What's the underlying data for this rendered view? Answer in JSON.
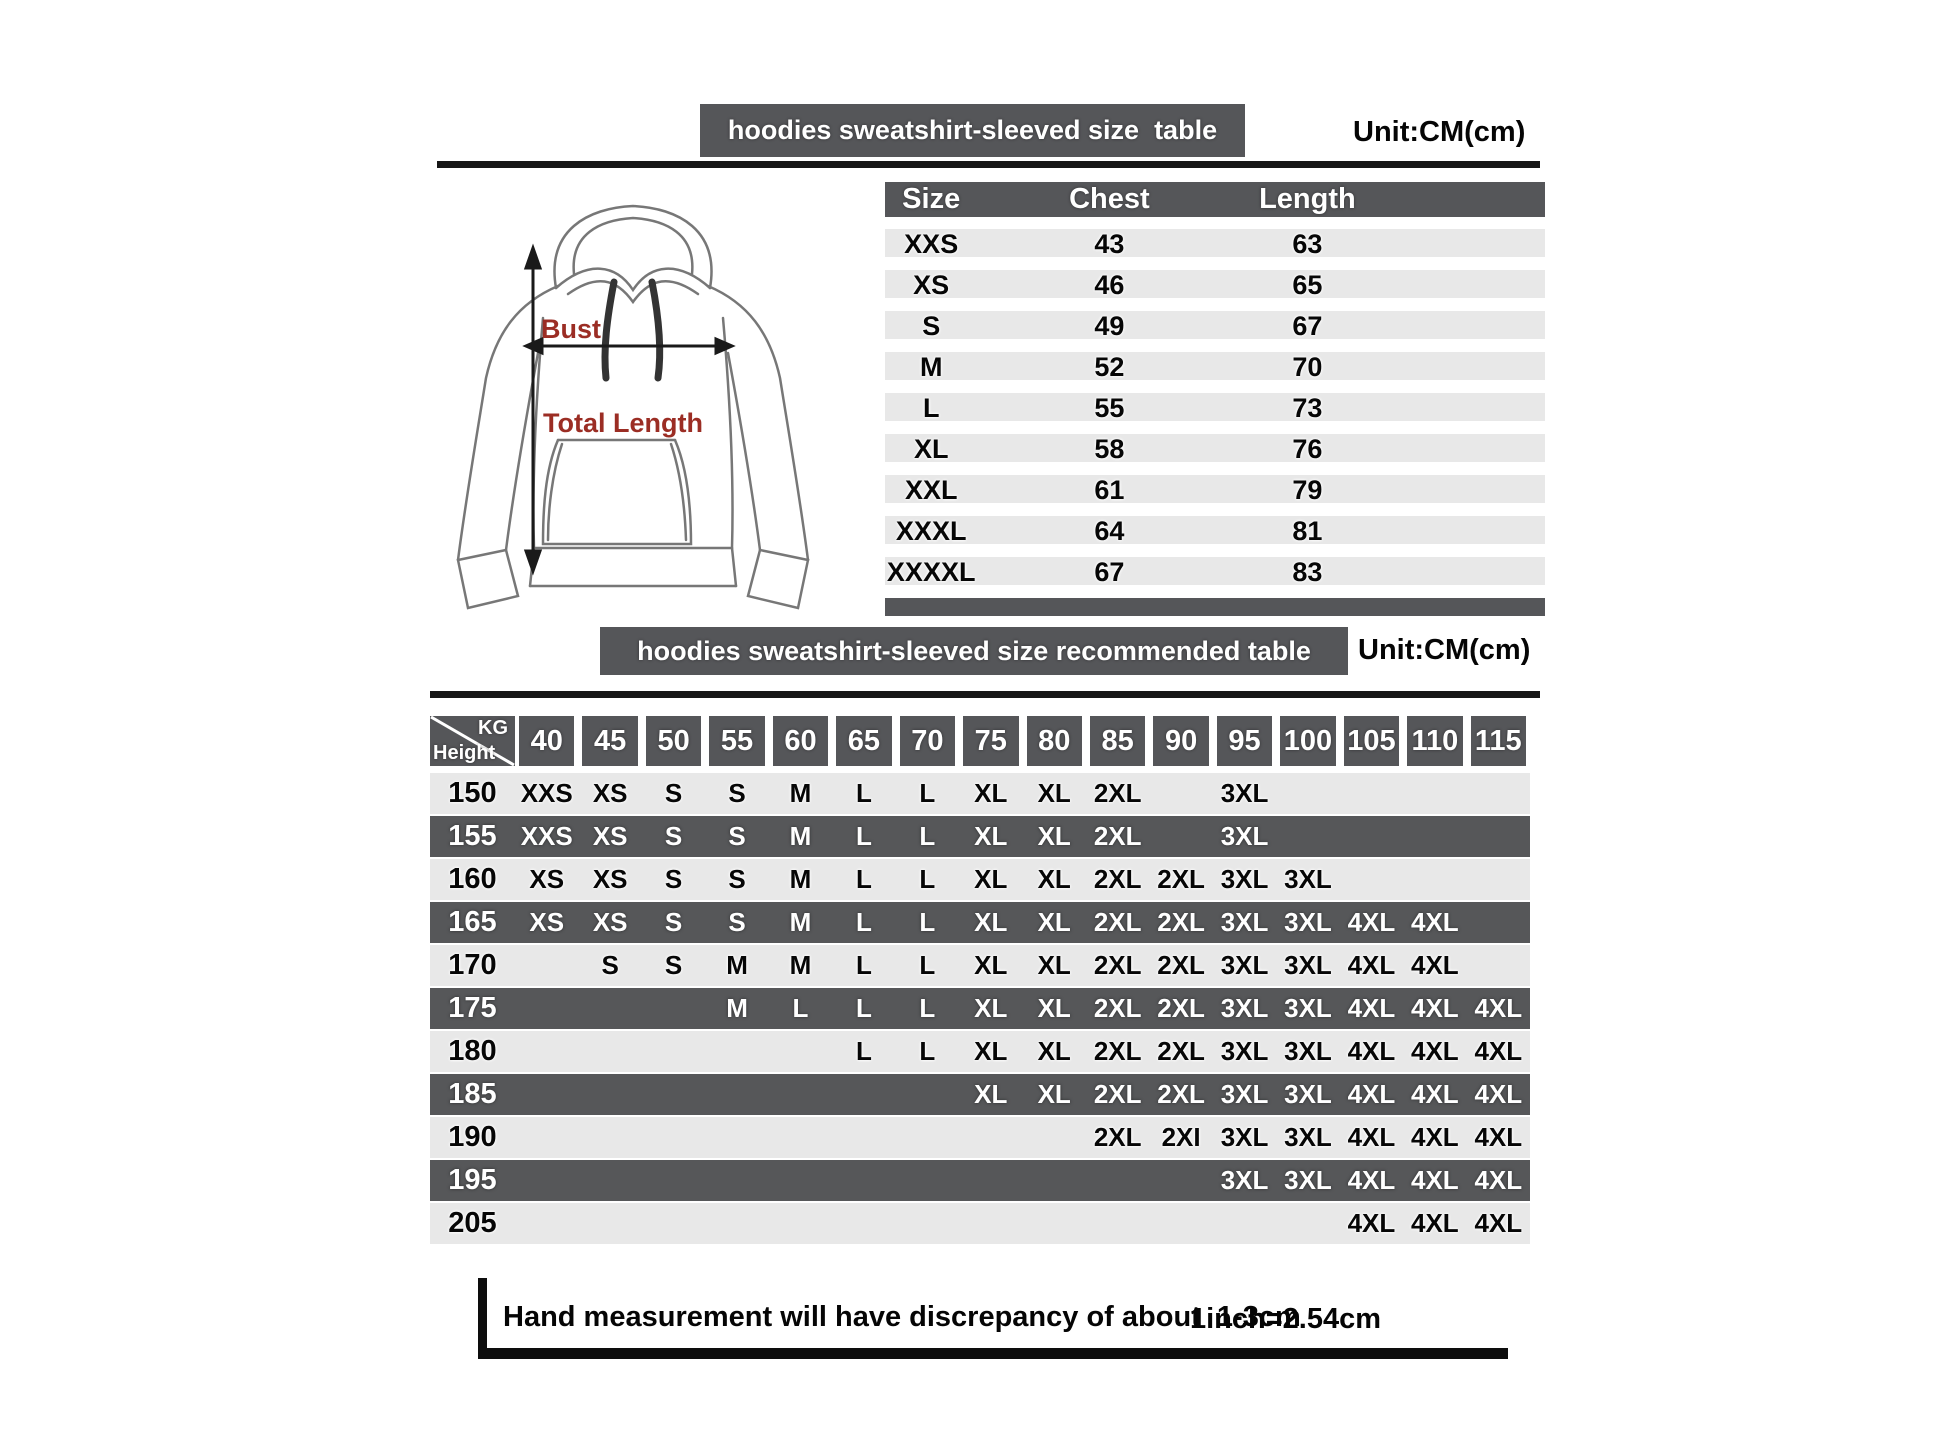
{
  "size_section": {
    "title": "hoodies sweatshirt-sleeved size  table",
    "unit_label": "Unit:CM(cm)",
    "hoodie_diagram": {
      "bust_label": "Bust",
      "total_length_label": "Total Length"
    },
    "table": {
      "columns": [
        "Size",
        "Chest",
        "Length"
      ],
      "rows": [
        [
          "XXS",
          "43",
          "63"
        ],
        [
          "XS",
          "46",
          "65"
        ],
        [
          "S",
          "49",
          "67"
        ],
        [
          "M",
          "52",
          "70"
        ],
        [
          "L",
          "55",
          "73"
        ],
        [
          "XL",
          "58",
          "76"
        ],
        [
          "XXL",
          "61",
          "79"
        ],
        [
          "XXXL",
          "64",
          "81"
        ],
        [
          "XXXXL",
          "67",
          "83"
        ]
      ]
    }
  },
  "recommended_section": {
    "title": "hoodies sweatshirt-sleeved size recommended table",
    "unit_label": "Unit:CM(cm)",
    "corner_labels": {
      "weight": "KG",
      "height": "Height"
    },
    "weight_columns": [
      "40",
      "45",
      "50",
      "55",
      "60",
      "65",
      "70",
      "75",
      "80",
      "85",
      "90",
      "95",
      "100",
      "105",
      "110",
      "115"
    ],
    "rows": [
      {
        "height": "150",
        "sizes": [
          "XXS",
          "XS",
          "S",
          "S",
          "M",
          "L",
          "L",
          "XL",
          "XL",
          "2XL",
          "",
          "3XL",
          "",
          "",
          "",
          ""
        ]
      },
      {
        "height": "155",
        "sizes": [
          "XXS",
          "XS",
          "S",
          "S",
          "M",
          "L",
          "L",
          "XL",
          "XL",
          "2XL",
          "",
          "3XL",
          "",
          "",
          "",
          ""
        ]
      },
      {
        "height": "160",
        "sizes": [
          "XS",
          "XS",
          "S",
          "S",
          "M",
          "L",
          "L",
          "XL",
          "XL",
          "2XL",
          "2XL",
          "3XL",
          "3XL",
          "",
          "",
          ""
        ]
      },
      {
        "height": "165",
        "sizes": [
          "XS",
          "XS",
          "S",
          "S",
          "M",
          "L",
          "L",
          "XL",
          "XL",
          "2XL",
          "2XL",
          "3XL",
          "3XL",
          "4XL",
          "4XL",
          ""
        ]
      },
      {
        "height": "170",
        "sizes": [
          "",
          "S",
          "S",
          "M",
          "M",
          "L",
          "L",
          "XL",
          "XL",
          "2XL",
          "2XL",
          "3XL",
          "3XL",
          "4XL",
          "4XL",
          ""
        ]
      },
      {
        "height": "175",
        "sizes": [
          "",
          "",
          "",
          "M",
          "L",
          "L",
          "L",
          "XL",
          "XL",
          "2XL",
          "2XL",
          "3XL",
          "3XL",
          "4XL",
          "4XL",
          "4XL"
        ]
      },
      {
        "height": "180",
        "sizes": [
          "",
          "",
          "",
          "",
          "",
          "L",
          "L",
          "XL",
          "XL",
          "2XL",
          "2XL",
          "3XL",
          "3XL",
          "4XL",
          "4XL",
          "4XL"
        ]
      },
      {
        "height": "185",
        "sizes": [
          "",
          "",
          "",
          "",
          "",
          "",
          "",
          "XL",
          "XL",
          "2XL",
          "2XL",
          "3XL",
          "3XL",
          "4XL",
          "4XL",
          "4XL"
        ]
      },
      {
        "height": "190",
        "sizes": [
          "",
          "",
          "",
          "",
          "",
          "",
          "",
          "",
          "",
          "2XL",
          "2XI",
          "3XL",
          "3XL",
          "4XL",
          "4XL",
          "4XL"
        ]
      },
      {
        "height": "195",
        "sizes": [
          "",
          "",
          "",
          "",
          "",
          "",
          "",
          "",
          "",
          "",
          "",
          "3XL",
          "3XL",
          "4XL",
          "4XL",
          "4XL"
        ]
      },
      {
        "height": "205",
        "sizes": [
          "",
          "",
          "",
          "",
          "",
          "",
          "",
          "",
          "",
          "",
          "",
          "",
          "",
          "4XL",
          "4XL",
          "4XL"
        ]
      }
    ]
  },
  "footer": {
    "note": "Hand measurement will have discrepancy of about  1-3cm",
    "conversion": "1inch=2.54cm"
  },
  "colors": {
    "dark_gray": "#555659",
    "light_row": "#e8e8e8",
    "dark_row": "#565759",
    "accent_red": "#9b2d24",
    "line_black": "#161616"
  }
}
